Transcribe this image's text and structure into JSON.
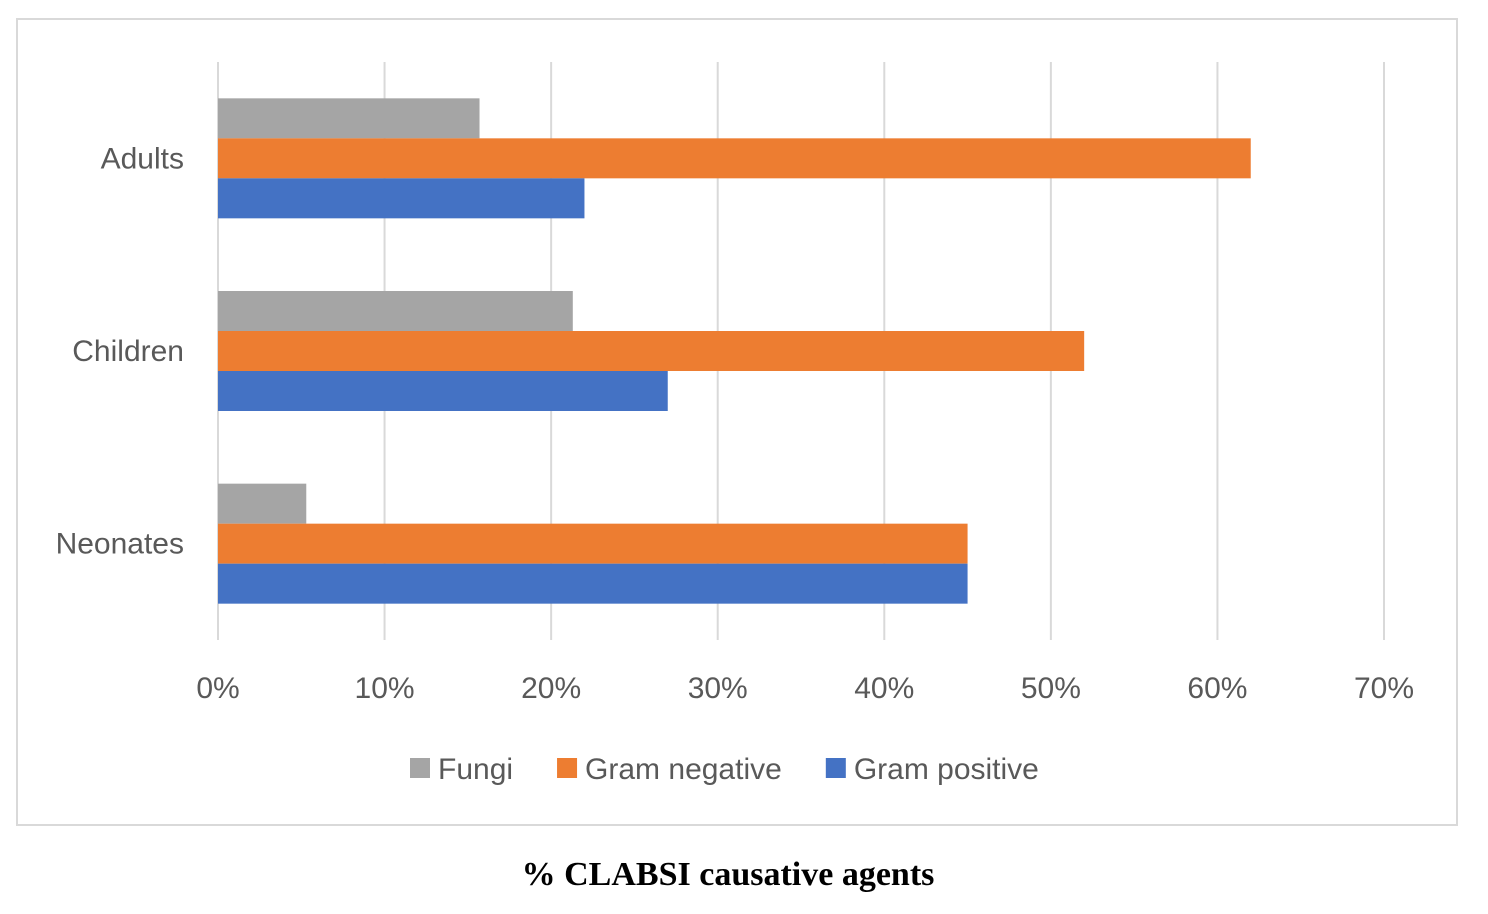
{
  "caption": "% CLABSI causative agents",
  "chart_data": {
    "type": "bar",
    "orientation": "horizontal",
    "categories": [
      "Adults",
      "Children",
      "Neonates"
    ],
    "series": [
      {
        "name": "Fungi",
        "color": "#a5a5a5",
        "values": [
          15.7,
          21.3,
          5.3
        ]
      },
      {
        "name": "Gram negative",
        "color": "#ed7d31",
        "values": [
          62,
          52,
          45
        ]
      },
      {
        "name": "Gram positive",
        "color": "#4472c4",
        "values": [
          22,
          27,
          45
        ]
      }
    ],
    "x_ticks": [
      "0%",
      "10%",
      "20%",
      "30%",
      "40%",
      "50%",
      "60%",
      "70%"
    ],
    "xlim": [
      0,
      70
    ],
    "grid": "vertical",
    "legend_position": "bottom",
    "title": "",
    "xlabel": "",
    "ylabel": ""
  }
}
